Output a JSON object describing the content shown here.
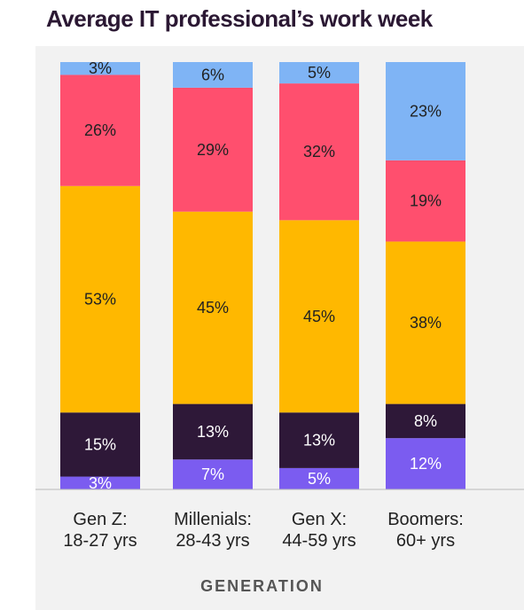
{
  "chart_data": {
    "type": "bar",
    "stacked": true,
    "title": "Average IT professional’s work week",
    "xlabel": "GENERATION",
    "ylabel": "",
    "ylim": [
      0,
      100
    ],
    "grid": false,
    "legend": "none",
    "categories": [
      [
        "Gen Z:",
        "18-27 yrs"
      ],
      [
        "Millenials:",
        "28-43 yrs"
      ],
      [
        "Gen X:",
        "44-59 yrs"
      ],
      [
        "Boomers:",
        "60+ yrs"
      ]
    ],
    "series": [
      {
        "color": "#7b5cf0",
        "text_color": "#ffffff",
        "values": [
          3,
          7,
          5,
          12
        ],
        "labels": [
          "3%",
          "7%",
          "5%",
          "12%"
        ]
      },
      {
        "color": "#2e1838",
        "text_color": "#ffffff",
        "values": [
          15,
          13,
          13,
          8
        ],
        "labels": [
          "15%",
          "13%",
          "13%",
          "8%"
        ]
      },
      {
        "color": "#ffb800",
        "text_color": "#222222",
        "values": [
          53,
          45,
          45,
          38
        ],
        "labels": [
          "53%",
          "45%",
          "45%",
          "38%"
        ]
      },
      {
        "color": "#ff4f6e",
        "text_color": "#222222",
        "values": [
          26,
          29,
          32,
          19
        ],
        "labels": [
          "26%",
          "29%",
          "32%",
          "19%"
        ]
      },
      {
        "color": "#7fb4f5",
        "text_color": "#222222",
        "values": [
          3,
          6,
          5,
          23
        ],
        "labels": [
          "3%",
          "6%",
          "5%",
          "23%"
        ]
      }
    ],
    "colors": {
      "panel": "#f2f2f2",
      "axis": "#bbbbbb",
      "title": "#2b1833"
    }
  }
}
